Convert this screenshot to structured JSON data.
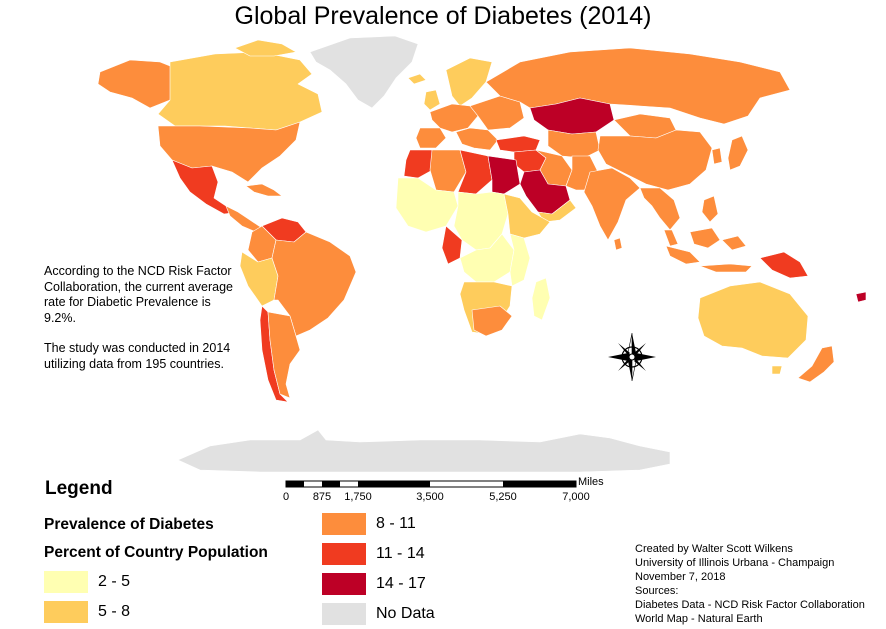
{
  "title": "Global Prevalence of Diabetes (2014)",
  "note": {
    "line1": "According to the NCD Risk Factor Collaboration, the current average rate for Diabetic Prevalence is 9.2%.",
    "line2": "The study was conducted in 2014 utilizing data from 195 countries."
  },
  "legend": {
    "title": "Legend",
    "subtitle1": "Prevalence of Diabetes",
    "subtitle2": "Percent of Country Population",
    "classes": [
      {
        "label": "2 - 5",
        "color": "#ffffb2"
      },
      {
        "label": "5 - 8",
        "color": "#fecc5c"
      },
      {
        "label": "8 - 11",
        "color": "#fd8d3c"
      },
      {
        "label": "11 - 14",
        "color": "#f03b20"
      },
      {
        "label": "14 - 17",
        "color": "#bd0026"
      },
      {
        "label": "No Data",
        "color": "#e1e1e1"
      }
    ]
  },
  "scalebar": {
    "unit": "Miles",
    "ticks": [
      "0",
      "875",
      "1,750",
      "3,500",
      "5,250",
      "7,000"
    ]
  },
  "credits": [
    "Created by Walter Scott Wilkens",
    "University of Illinois Urbana - Champaign",
    "November 7, 2018",
    "Sources:",
    "Diabetes Data - NCD Risk Factor Collaboration",
    "World Map - Natural Earth"
  ],
  "compass": {
    "icon": "compass-rose-icon"
  }
}
